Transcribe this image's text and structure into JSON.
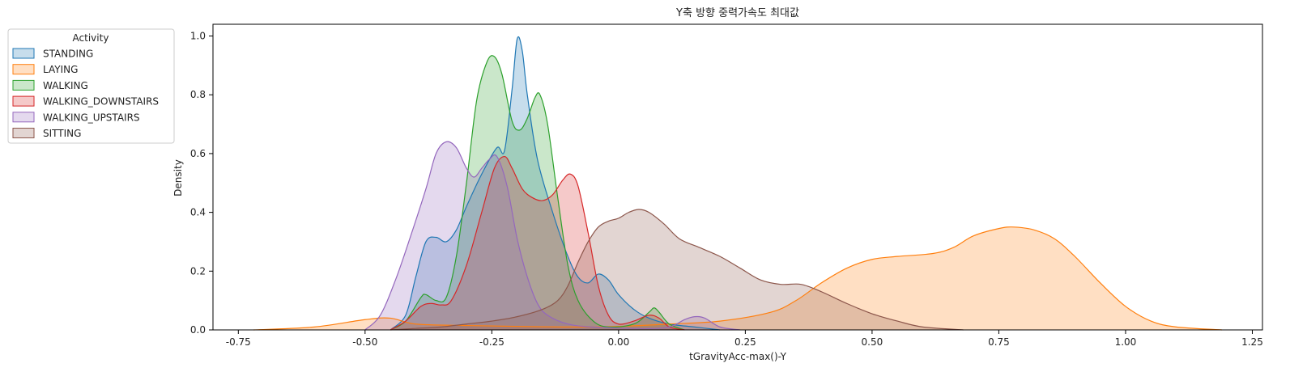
{
  "chart_data": {
    "type": "area",
    "title": "Y축 방향 중력가속도 최대값",
    "xlabel": "tGravityAcc-max()-Y",
    "ylabel": "Density",
    "xlim": [
      -0.8,
      1.27
    ],
    "ylim": [
      0,
      1.04
    ],
    "xticks": [
      -0.75,
      -0.5,
      -0.25,
      0.0,
      0.25,
      0.5,
      0.75,
      1.0,
      1.25
    ],
    "xtick_labels": [
      "-0.75",
      "-0.50",
      "-0.25",
      "0.00",
      "0.25",
      "0.50",
      "0.75",
      "1.00",
      "1.25"
    ],
    "yticks": [
      0.0,
      0.2,
      0.4,
      0.6,
      0.8,
      1.0
    ],
    "ytick_labels": [
      "0.0",
      "0.2",
      "0.4",
      "0.6",
      "0.8",
      "1.0"
    ],
    "grid": false,
    "legend": {
      "title": "Activity",
      "placement": "outside-upper-left"
    },
    "series": [
      {
        "name": "STANDING",
        "color": "#1f77b4",
        "points": [
          [
            -0.45,
            0
          ],
          [
            -0.42,
            0.05
          ],
          [
            -0.4,
            0.18
          ],
          [
            -0.38,
            0.3
          ],
          [
            -0.36,
            0.315
          ],
          [
            -0.34,
            0.3
          ],
          [
            -0.32,
            0.34
          ],
          [
            -0.3,
            0.42
          ],
          [
            -0.27,
            0.53
          ],
          [
            -0.24,
            0.62
          ],
          [
            -0.225,
            0.61
          ],
          [
            -0.21,
            0.82
          ],
          [
            -0.2,
            0.99
          ],
          [
            -0.19,
            0.95
          ],
          [
            -0.18,
            0.8
          ],
          [
            -0.16,
            0.58
          ],
          [
            -0.13,
            0.4
          ],
          [
            -0.1,
            0.25
          ],
          [
            -0.08,
            0.18
          ],
          [
            -0.06,
            0.16
          ],
          [
            -0.04,
            0.19
          ],
          [
            -0.02,
            0.17
          ],
          [
            0.0,
            0.12
          ],
          [
            0.03,
            0.07
          ],
          [
            0.06,
            0.04
          ],
          [
            0.1,
            0.02
          ],
          [
            0.15,
            0.01
          ],
          [
            0.2,
            0
          ]
        ]
      },
      {
        "name": "LAYING",
        "color": "#ff7f0e",
        "points": [
          [
            -0.72,
            0
          ],
          [
            -0.6,
            0.01
          ],
          [
            -0.5,
            0.035
          ],
          [
            -0.45,
            0.04
          ],
          [
            -0.4,
            0.02
          ],
          [
            -0.3,
            0.015
          ],
          [
            -0.2,
            0.012
          ],
          [
            -0.1,
            0.01
          ],
          [
            0.0,
            0.012
          ],
          [
            0.1,
            0.02
          ],
          [
            0.2,
            0.03
          ],
          [
            0.3,
            0.06
          ],
          [
            0.35,
            0.1
          ],
          [
            0.4,
            0.16
          ],
          [
            0.45,
            0.21
          ],
          [
            0.5,
            0.24
          ],
          [
            0.55,
            0.25
          ],
          [
            0.62,
            0.26
          ],
          [
            0.66,
            0.28
          ],
          [
            0.7,
            0.32
          ],
          [
            0.75,
            0.345
          ],
          [
            0.78,
            0.35
          ],
          [
            0.82,
            0.34
          ],
          [
            0.86,
            0.31
          ],
          [
            0.9,
            0.25
          ],
          [
            0.95,
            0.16
          ],
          [
            1.0,
            0.08
          ],
          [
            1.05,
            0.03
          ],
          [
            1.1,
            0.01
          ],
          [
            1.19,
            0
          ]
        ]
      },
      {
        "name": "WALKING",
        "color": "#2ca02c",
        "points": [
          [
            -0.45,
            0
          ],
          [
            -0.42,
            0.03
          ],
          [
            -0.39,
            0.11
          ],
          [
            -0.38,
            0.12
          ],
          [
            -0.36,
            0.1
          ],
          [
            -0.34,
            0.11
          ],
          [
            -0.32,
            0.25
          ],
          [
            -0.3,
            0.5
          ],
          [
            -0.28,
            0.78
          ],
          [
            -0.26,
            0.91
          ],
          [
            -0.245,
            0.93
          ],
          [
            -0.23,
            0.87
          ],
          [
            -0.21,
            0.71
          ],
          [
            -0.195,
            0.68
          ],
          [
            -0.18,
            0.72
          ],
          [
            -0.165,
            0.79
          ],
          [
            -0.155,
            0.8
          ],
          [
            -0.14,
            0.7
          ],
          [
            -0.12,
            0.45
          ],
          [
            -0.1,
            0.22
          ],
          [
            -0.08,
            0.1
          ],
          [
            -0.05,
            0.03
          ],
          [
            -0.02,
            0.01
          ],
          [
            0.03,
            0.02
          ],
          [
            0.06,
            0.06
          ],
          [
            0.07,
            0.075
          ],
          [
            0.08,
            0.06
          ],
          [
            0.1,
            0.02
          ],
          [
            0.13,
            0
          ]
        ]
      },
      {
        "name": "WALKING_DOWNSTAIRS",
        "color": "#d62728",
        "points": [
          [
            -0.45,
            0
          ],
          [
            -0.42,
            0.03
          ],
          [
            -0.39,
            0.08
          ],
          [
            -0.37,
            0.09
          ],
          [
            -0.35,
            0.085
          ],
          [
            -0.33,
            0.1
          ],
          [
            -0.3,
            0.22
          ],
          [
            -0.27,
            0.4
          ],
          [
            -0.245,
            0.55
          ],
          [
            -0.225,
            0.59
          ],
          [
            -0.21,
            0.55
          ],
          [
            -0.19,
            0.48
          ],
          [
            -0.17,
            0.45
          ],
          [
            -0.15,
            0.44
          ],
          [
            -0.13,
            0.46
          ],
          [
            -0.11,
            0.51
          ],
          [
            -0.095,
            0.53
          ],
          [
            -0.08,
            0.49
          ],
          [
            -0.06,
            0.33
          ],
          [
            -0.04,
            0.15
          ],
          [
            -0.02,
            0.05
          ],
          [
            0.0,
            0.02
          ],
          [
            0.03,
            0.03
          ],
          [
            0.06,
            0.05
          ],
          [
            0.08,
            0.04
          ],
          [
            0.1,
            0.01
          ],
          [
            0.13,
            0
          ]
        ]
      },
      {
        "name": "WALKING_UPSTAIRS",
        "color": "#9467bd",
        "points": [
          [
            -0.5,
            0
          ],
          [
            -0.47,
            0.05
          ],
          [
            -0.44,
            0.17
          ],
          [
            -0.41,
            0.32
          ],
          [
            -0.38,
            0.48
          ],
          [
            -0.36,
            0.6
          ],
          [
            -0.34,
            0.64
          ],
          [
            -0.32,
            0.62
          ],
          [
            -0.3,
            0.55
          ],
          [
            -0.285,
            0.52
          ],
          [
            -0.27,
            0.55
          ],
          [
            -0.255,
            0.58
          ],
          [
            -0.24,
            0.59
          ],
          [
            -0.22,
            0.49
          ],
          [
            -0.2,
            0.31
          ],
          [
            -0.18,
            0.18
          ],
          [
            -0.16,
            0.09
          ],
          [
            -0.14,
            0.05
          ],
          [
            -0.1,
            0.02
          ],
          [
            -0.05,
            0.01
          ],
          [
            0.05,
            0.005
          ],
          [
            0.1,
            0.01
          ],
          [
            0.13,
            0.035
          ],
          [
            0.15,
            0.045
          ],
          [
            0.17,
            0.04
          ],
          [
            0.2,
            0.01
          ],
          [
            0.24,
            0
          ]
        ]
      },
      {
        "name": "SITTING",
        "color": "#8c564b",
        "points": [
          [
            -0.45,
            0
          ],
          [
            -0.4,
            0.005
          ],
          [
            -0.35,
            0.01
          ],
          [
            -0.3,
            0.02
          ],
          [
            -0.25,
            0.03
          ],
          [
            -0.2,
            0.045
          ],
          [
            -0.15,
            0.07
          ],
          [
            -0.12,
            0.1
          ],
          [
            -0.1,
            0.15
          ],
          [
            -0.08,
            0.23
          ],
          [
            -0.06,
            0.3
          ],
          [
            -0.04,
            0.35
          ],
          [
            -0.02,
            0.37
          ],
          [
            0.0,
            0.38
          ],
          [
            0.02,
            0.4
          ],
          [
            0.04,
            0.41
          ],
          [
            0.06,
            0.4
          ],
          [
            0.09,
            0.36
          ],
          [
            0.12,
            0.31
          ],
          [
            0.16,
            0.28
          ],
          [
            0.2,
            0.25
          ],
          [
            0.24,
            0.21
          ],
          [
            0.28,
            0.17
          ],
          [
            0.32,
            0.155
          ],
          [
            0.36,
            0.155
          ],
          [
            0.4,
            0.13
          ],
          [
            0.45,
            0.09
          ],
          [
            0.5,
            0.055
          ],
          [
            0.55,
            0.03
          ],
          [
            0.6,
            0.01
          ],
          [
            0.68,
            0
          ]
        ]
      }
    ]
  }
}
